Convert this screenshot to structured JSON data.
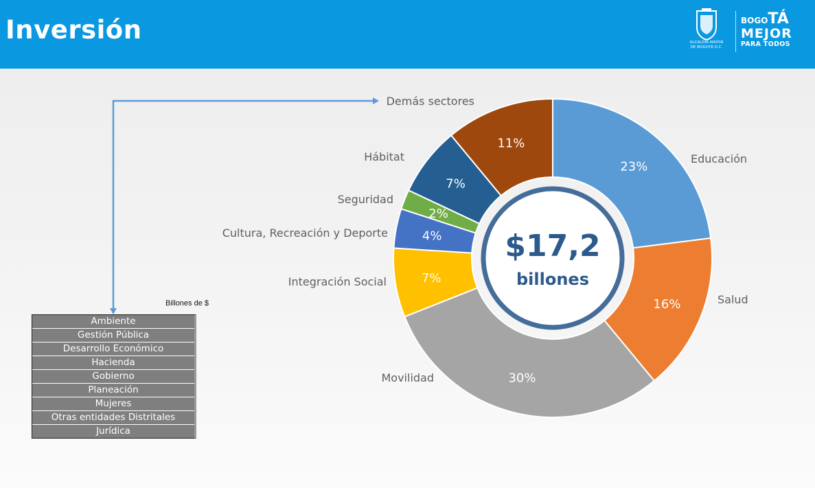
{
  "header": {
    "title": "Inversión",
    "logo_crest_text": [
      "ALCALDÍA MAYOR",
      "DE BOGOTÁ D.C."
    ],
    "logo_brand": {
      "prefix": "BOGO",
      "accent": "TÁ",
      "line2": "MEJOR",
      "line3": "PARA TODOS"
    },
    "color": "#0a98e0"
  },
  "chart_data": {
    "type": "pie",
    "donut": true,
    "center_value": "$17,2",
    "center_unit": "billones",
    "categories": [
      "Educación",
      "Salud",
      "Movilidad",
      "Integración Social",
      "Cultura, Recreación y Deporte",
      "Seguridad",
      "Hábitat",
      "Demás sectores"
    ],
    "values": [
      23,
      16,
      30,
      7,
      4,
      2,
      7,
      11
    ],
    "value_labels": [
      "23%",
      "16%",
      "30%",
      "7%",
      "4%",
      "2%",
      "7%",
      "11%"
    ],
    "colors": [
      "#5b9bd5",
      "#ed7d31",
      "#a5a5a5",
      "#ffc000",
      "#4472c4",
      "#70ad47",
      "#255e91",
      "#9e480e"
    ]
  },
  "others_table": {
    "units_label": "Billones de $",
    "rows": [
      "Ambiente",
      "Gestión Pública",
      "Desarrollo Económico",
      "Hacienda",
      "Gobierno",
      "Planeación",
      "Mujeres",
      "Otras entidades Distritales",
      "Jurídica"
    ]
  }
}
